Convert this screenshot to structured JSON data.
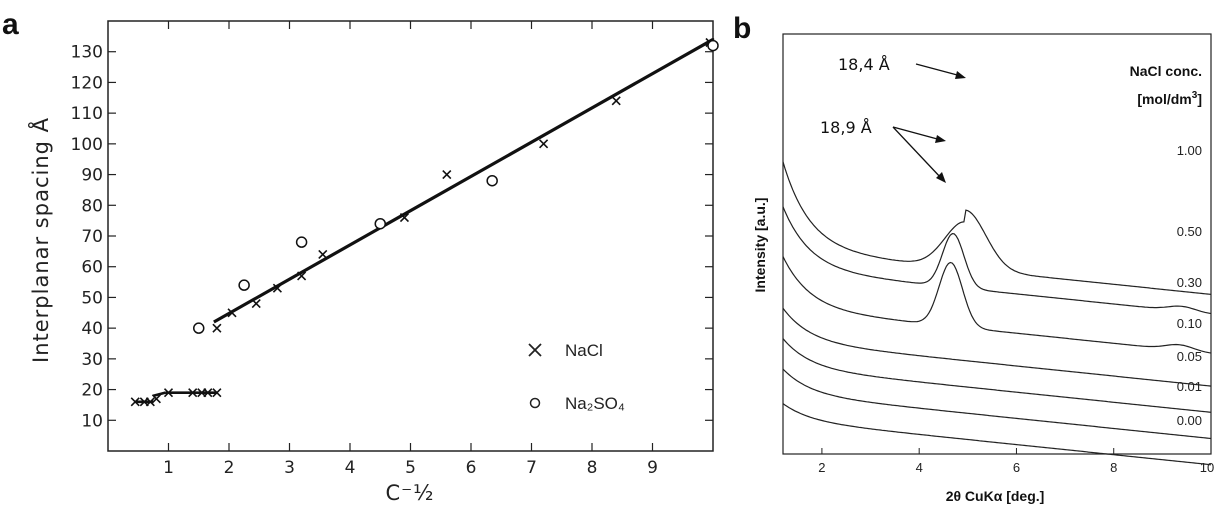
{
  "panels": {
    "a": "a",
    "b": "b"
  },
  "chart_data": [
    {
      "type": "scatter",
      "panel": "a",
      "xlabel": "C⁻½",
      "ylabel": "Interplanar spacing  Å",
      "xlim": [
        0,
        10
      ],
      "ylim": [
        0,
        140
      ],
      "xticks": [
        1,
        2,
        3,
        4,
        5,
        6,
        7,
        8,
        9
      ],
      "yticks": [
        10,
        20,
        30,
        40,
        50,
        60,
        70,
        80,
        90,
        100,
        110,
        120,
        130
      ],
      "grid": false,
      "legend_position": "bottom-right",
      "series": [
        {
          "name": "NaCl",
          "marker": "x",
          "x": [
            0.45,
            0.6,
            0.7,
            0.8,
            1.0,
            1.4,
            1.55,
            1.65,
            1.8,
            1.8,
            2.05,
            2.45,
            2.8,
            3.2,
            3.55,
            4.9,
            5.6,
            7.2,
            8.4,
            9.95
          ],
          "y": [
            16,
            16,
            16,
            17,
            19,
            19,
            19,
            19,
            19,
            40,
            45,
            48,
            53,
            57,
            64,
            76,
            90,
            100,
            114,
            133
          ]
        },
        {
          "name": "Na₂SO₄",
          "marker": "o",
          "x": [
            1.5,
            2.25,
            3.2,
            4.5,
            6.35,
            10.0
          ],
          "y": [
            40,
            54,
            68,
            74,
            88,
            132
          ]
        }
      ],
      "fit_lines": [
        {
          "x": [
            1.75,
            10.0
          ],
          "y": [
            42,
            134
          ]
        },
        {
          "x": [
            0.45,
            0.75
          ],
          "y": [
            16,
            16
          ]
        },
        {
          "x": [
            0.75,
            0.95
          ],
          "y": [
            18,
            19
          ]
        },
        {
          "x": [
            0.95,
            1.8
          ],
          "y": [
            19,
            19
          ]
        }
      ]
    },
    {
      "type": "line",
      "panel": "b",
      "xlabel": "2θ CuKα [deg.]",
      "ylabel": "Intensity [a.u.]",
      "xlim": [
        1.2,
        10
      ],
      "xticks": [
        2,
        4,
        6,
        8,
        10
      ],
      "legend_title": "NaCl conc.",
      "legend_unit": "[mol/dm",
      "legend_unit_sup": "3",
      "legend_unit_close": "]",
      "series": [
        {
          "name": "1.00",
          "base": 0.88,
          "tail": 0.42,
          "peak": {
            "x": 4.95,
            "h": 0.7,
            "w": 0.42
          },
          "peak2": {
            "x": 9.4,
            "h": 0.0,
            "w": 0.3
          }
        },
        {
          "name": "0.50",
          "base": 0.82,
          "tail": 0.3,
          "peak": {
            "x": 4.7,
            "h": 0.8,
            "w": 0.22
          },
          "peak2": {
            "x": 9.4,
            "h": 0.07,
            "w": 0.28
          }
        },
        {
          "name": "0.30",
          "base": 0.7,
          "tail": 0.25,
          "peak": {
            "x": 4.65,
            "h": 0.95,
            "w": 0.24
          },
          "peak2": {
            "x": 9.35,
            "h": 0.08,
            "w": 0.28
          }
        },
        {
          "name": "0.10",
          "base": 0.6,
          "tail": 0.16,
          "peak": {
            "x": 4.6,
            "h": 0.0,
            "w": 0.2
          },
          "peak2": {
            "x": 9.4,
            "h": 0.0,
            "w": 0.3
          }
        },
        {
          "name": "0.05",
          "base": 0.52,
          "tail": 0.14,
          "peak": {
            "x": 4.6,
            "h": 0.0,
            "w": 0.2
          },
          "peak2": {
            "x": 9.4,
            "h": 0.0,
            "w": 0.3
          }
        },
        {
          "name": "0.01",
          "base": 0.44,
          "tail": 0.12,
          "peak": {
            "x": 4.6,
            "h": 0.0,
            "w": 0.2
          },
          "peak2": {
            "x": 9.4,
            "h": 0.0,
            "w": 0.3
          }
        },
        {
          "name": "0.00",
          "base": 0.36,
          "tail": 0.08,
          "peak": {
            "x": 4.6,
            "h": 0.0,
            "w": 0.2
          },
          "peak2": {
            "x": 9.4,
            "h": 0.0,
            "w": 0.3
          }
        }
      ],
      "annotations": [
        "18,4 Å",
        "18,9 Å"
      ]
    }
  ]
}
